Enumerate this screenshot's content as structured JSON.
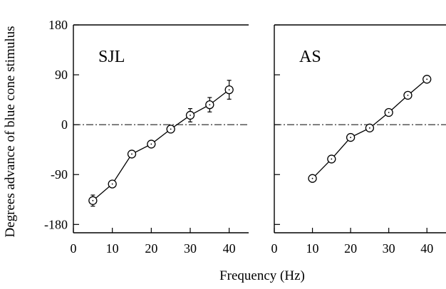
{
  "figure": {
    "ylabel": "Degrees advance of blue cone stimulus",
    "xlabel": "Frequency (Hz)"
  },
  "chart_data": [
    {
      "type": "line",
      "panel_label": "SJL",
      "x": [
        5,
        10,
        15,
        20,
        25,
        30,
        35,
        40
      ],
      "y": [
        -137,
        -107,
        -53,
        -35,
        -8,
        17,
        36,
        63
      ],
      "error": [
        10,
        0,
        0,
        0,
        0,
        12,
        13,
        17
      ],
      "xlim": [
        0,
        45
      ],
      "ylim": [
        -195,
        180
      ],
      "xticks": [
        0,
        10,
        20,
        30,
        40
      ],
      "yticks": [
        180,
        90,
        0,
        -90,
        -180
      ],
      "zero_line": "dash-dot",
      "marker": "open circle with center dot"
    },
    {
      "type": "line",
      "panel_label": "AS",
      "x": [
        10,
        15,
        20,
        25,
        30,
        35,
        40
      ],
      "y": [
        -97,
        -62,
        -23,
        -6,
        22,
        53,
        82
      ],
      "error": [
        0,
        0,
        0,
        0,
        0,
        0,
        0
      ],
      "xlim": [
        0,
        45
      ],
      "ylim": [
        -195,
        180
      ],
      "xticks": [
        0,
        10,
        20,
        30,
        40
      ],
      "yticks": [
        180,
        90,
        0,
        -90,
        -180
      ],
      "zero_line": "dash-dot",
      "marker": "open circle with center dot"
    }
  ]
}
